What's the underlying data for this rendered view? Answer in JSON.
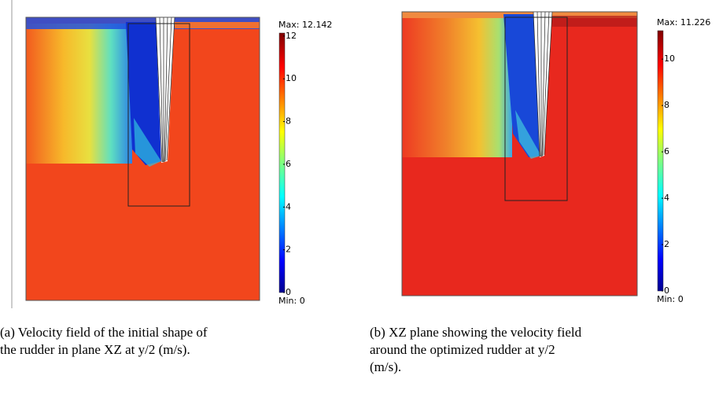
{
  "panels": [
    {
      "max_label": "Max: 12.142",
      "min_label": "Min: 0",
      "range": [
        0,
        12.142
      ],
      "ticks": [
        0,
        2,
        4,
        6,
        8,
        10,
        12
      ],
      "caption": [
        "(a) Velocity field of the initial shape of",
        "the rudder in plane XZ at y/2 (m/s)."
      ]
    },
    {
      "max_label": "Max: 11.226",
      "min_label": "Min: 0",
      "range": [
        0,
        11.226
      ],
      "ticks": [
        0,
        2,
        4,
        6,
        8,
        10
      ],
      "caption": [
        "(b) XZ plane showing the velocity field",
        "around the optimized rudder at y/2",
        "(m/s)."
      ]
    }
  ]
}
